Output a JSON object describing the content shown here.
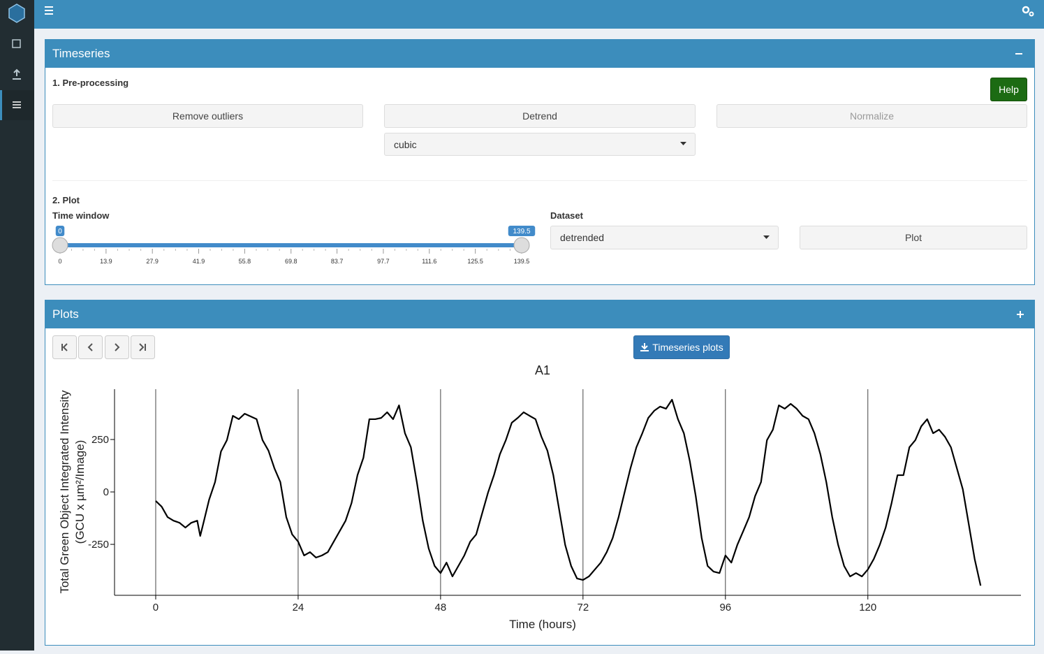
{
  "timeseries_box": {
    "title": "Timeseries",
    "section1": "1. Pre-processing",
    "help": "Help",
    "buttons": [
      "Remove outliers",
      "Detrend",
      "Normalize"
    ],
    "detrend_method": "cubic",
    "section2": "2. Plot",
    "time_window_label": "Time window",
    "slider": {
      "range": [
        0,
        139.5
      ],
      "from": 0,
      "to": 139.5,
      "ticks": [
        0,
        13.9,
        27.9,
        41.9,
        55.8,
        69.8,
        83.7,
        97.7,
        111.6,
        125.5,
        139.5
      ]
    },
    "dataset_label": "Dataset",
    "dataset": "detrended",
    "plot_button": "Plot"
  },
  "plots_box": {
    "title": "Plots",
    "download": "Timeseries plots"
  },
  "chart_data": {
    "type": "line",
    "title": "A1",
    "x_label": "Time (hours)",
    "y_label": [
      "Total Green Object Integrated Intensity",
      "(GCU x µm²/Image)"
    ],
    "x": [
      0,
      1,
      2,
      3,
      4,
      5,
      6,
      7,
      7.5,
      8,
      9,
      10,
      11,
      12,
      13,
      14,
      15,
      16,
      17,
      18,
      19,
      20,
      21,
      22,
      23,
      24,
      25,
      26,
      27,
      28,
      29,
      30,
      31,
      32,
      33,
      34,
      35,
      36,
      37,
      38,
      39,
      40,
      41,
      42,
      43,
      44,
      45,
      46,
      47,
      48,
      49,
      50,
      51,
      52,
      53,
      54,
      55,
      56,
      57,
      58,
      59,
      60,
      61,
      62,
      63,
      64,
      65,
      66,
      67,
      68,
      69,
      70,
      71,
      72,
      73,
      74,
      75,
      76,
      77,
      78,
      79,
      80,
      81,
      82,
      83,
      84,
      85,
      86,
      87,
      88,
      89,
      90,
      91,
      92,
      93,
      94,
      95,
      96,
      97,
      98,
      99,
      100,
      101,
      102,
      103,
      104,
      105,
      106,
      107,
      108,
      109,
      110,
      111,
      112,
      113,
      114,
      115,
      116,
      117,
      118,
      119,
      120,
      121,
      122,
      123,
      124,
      125,
      126,
      127,
      128,
      129,
      130,
      131,
      132,
      133,
      134,
      135,
      136,
      137,
      138,
      139
    ],
    "series": [
      {
        "color": "#000000",
        "values": [
          -43,
          -70,
          -120,
          -137,
          -147,
          -170,
          -147,
          -137,
          -210,
          -153,
          -37,
          47,
          193,
          247,
          363,
          347,
          373,
          360,
          347,
          247,
          197,
          113,
          47,
          -120,
          -203,
          -237,
          -303,
          -287,
          -313,
          -303,
          -287,
          -237,
          -187,
          -137,
          -53,
          80,
          163,
          347,
          347,
          353,
          380,
          347,
          413,
          280,
          213,
          47,
          -137,
          -270,
          -353,
          -387,
          -337,
          -403,
          -353,
          -303,
          -237,
          -203,
          -103,
          -3,
          80,
          180,
          247,
          330,
          353,
          380,
          363,
          347,
          263,
          197,
          80,
          -87,
          -253,
          -353,
          -413,
          -420,
          -403,
          -370,
          -337,
          -287,
          -220,
          -120,
          -3,
          113,
          213,
          280,
          353,
          387,
          407,
          397,
          440,
          347,
          280,
          147,
          -20,
          -220,
          -353,
          -380,
          -387,
          -303,
          -337,
          -253,
          -187,
          -120,
          -20,
          47,
          247,
          297,
          413,
          397,
          420,
          397,
          363,
          347,
          280,
          180,
          47,
          -120,
          -253,
          -353,
          -403,
          -387,
          -403,
          -370,
          -320,
          -253,
          -170,
          -53,
          80,
          80,
          213,
          247,
          313,
          347,
          280,
          297,
          263,
          213,
          113,
          13,
          -153,
          -320,
          -447
        ]
      }
    ],
    "xlim": [
      -6.94,
      145.8
    ],
    "ylim": [
      -493,
      490
    ],
    "xticks": [
      0,
      24,
      48,
      72,
      96,
      120
    ],
    "yticks": [
      -250,
      0,
      250
    ],
    "grid_x": true
  }
}
